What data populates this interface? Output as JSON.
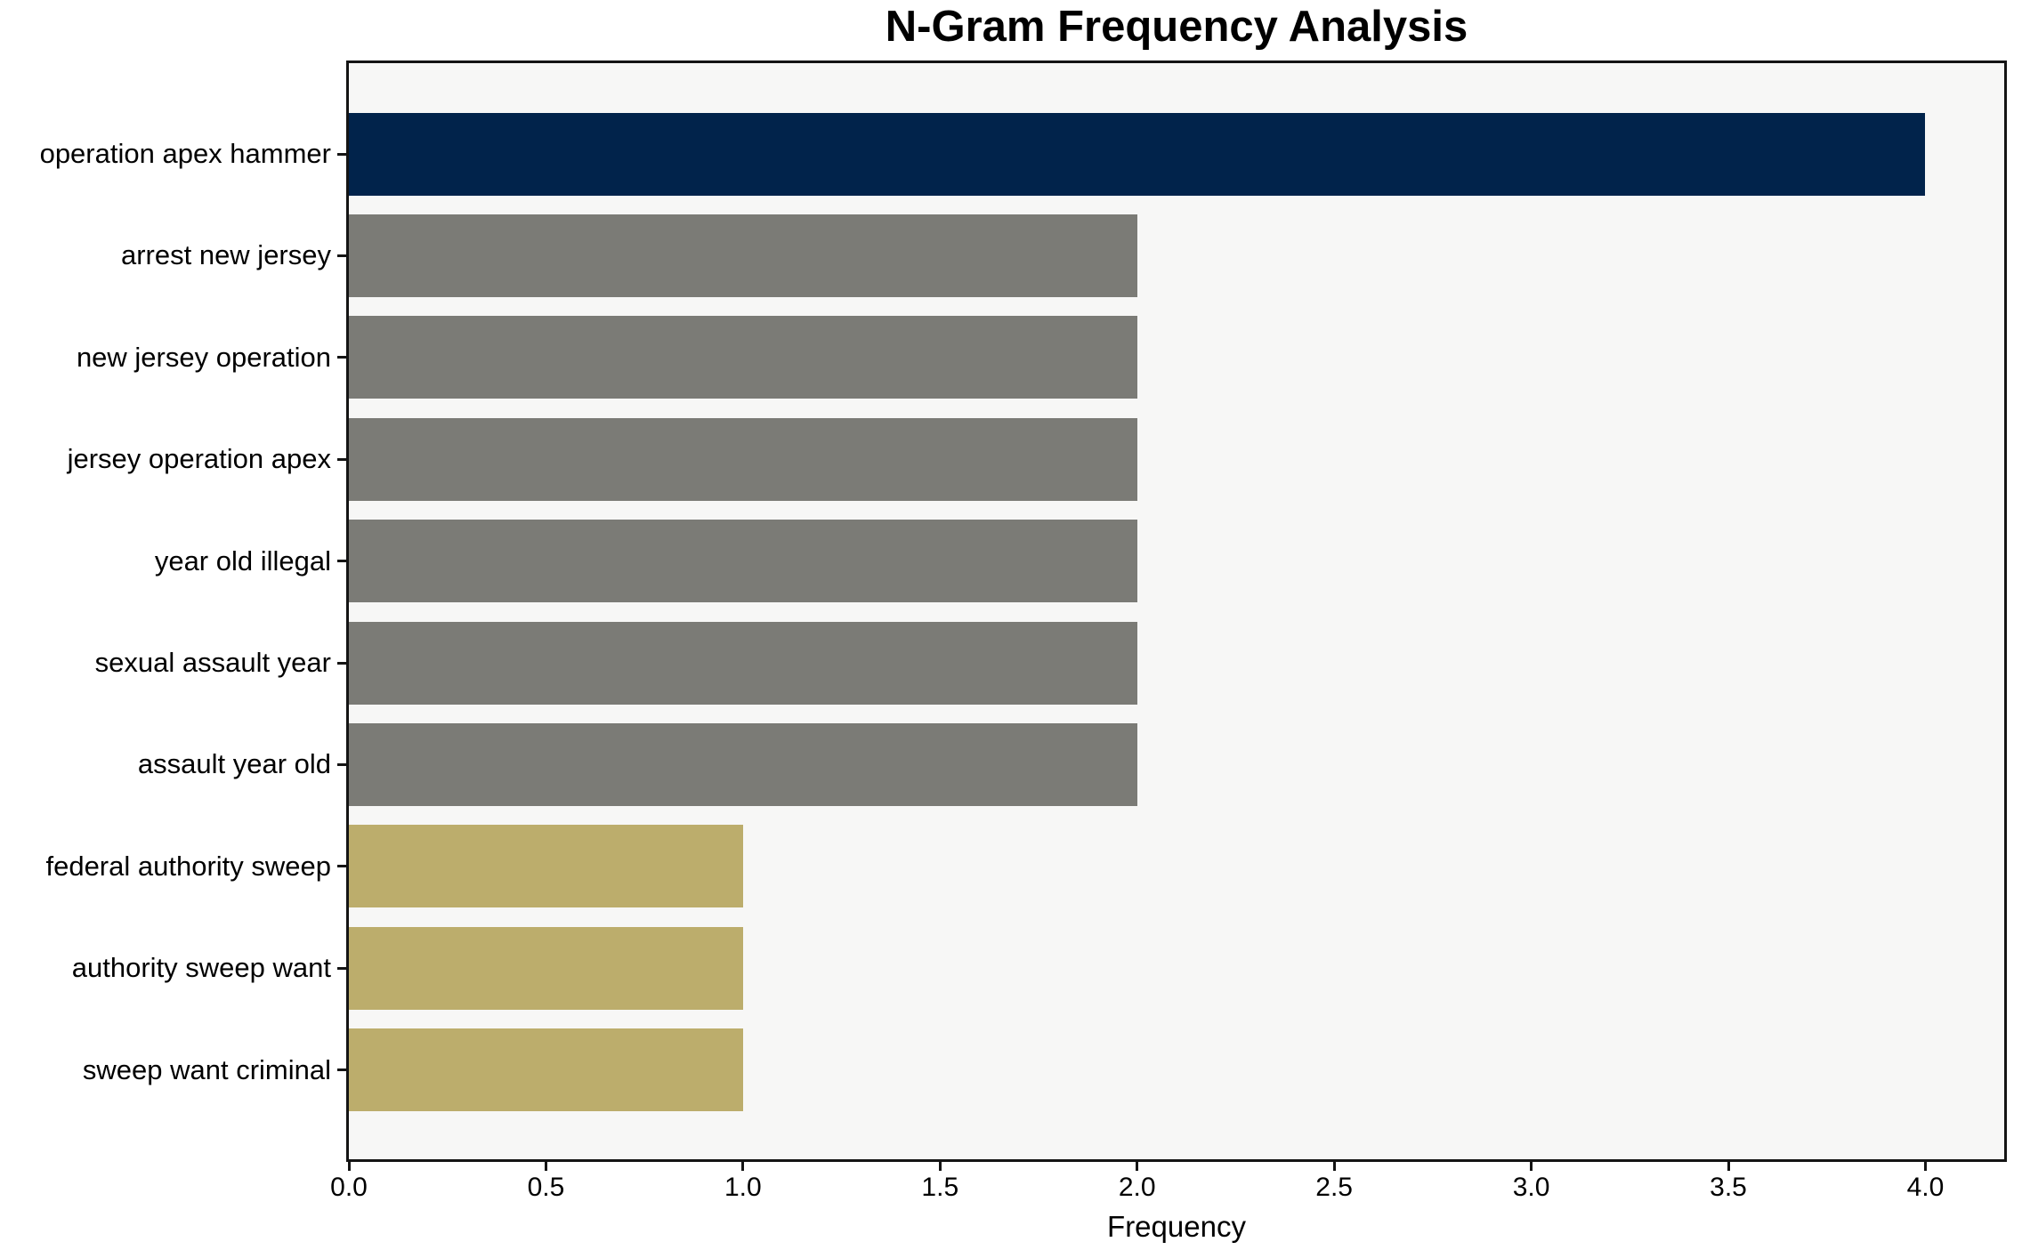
{
  "title": "N-Gram Frequency Analysis",
  "chart_data": {
    "type": "bar",
    "orientation": "horizontal",
    "title": "N-Gram Frequency Analysis",
    "xlabel": "Frequency",
    "ylabel": "",
    "categories": [
      "operation apex hammer",
      "arrest new jersey",
      "new jersey operation",
      "jersey operation apex",
      "year old illegal",
      "sexual assault year",
      "assault year old",
      "federal authority sweep",
      "authority sweep want",
      "sweep want criminal"
    ],
    "values": [
      4,
      2,
      2,
      2,
      2,
      2,
      2,
      1,
      1,
      1
    ],
    "bar_colors": [
      "#01234b",
      "#7b7b76",
      "#7b7b76",
      "#7b7b76",
      "#7b7b76",
      "#7b7b76",
      "#7b7b76",
      "#bcad6c",
      "#bcad6c",
      "#bcad6c"
    ],
    "xlim": [
      0,
      4.2
    ],
    "xticks": [
      0.0,
      0.5,
      1.0,
      1.5,
      2.0,
      2.5,
      3.0,
      3.5,
      4.0
    ],
    "xtick_labels": [
      "0.0",
      "0.5",
      "1.0",
      "1.5",
      "2.0",
      "2.5",
      "3.0",
      "3.5",
      "4.0"
    ],
    "grid": false,
    "legend": null,
    "plot_background": "#f7f7f6",
    "figure_background": "#ffffff",
    "spine_color": "#141414"
  }
}
